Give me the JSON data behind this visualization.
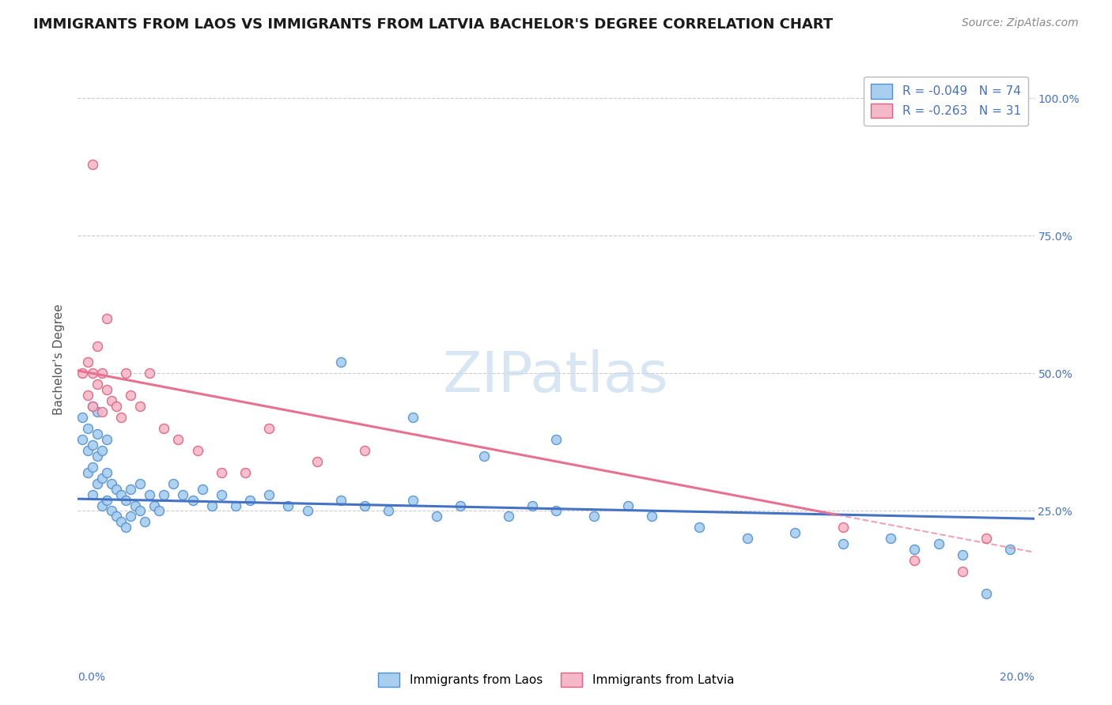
{
  "title": "IMMIGRANTS FROM LAOS VS IMMIGRANTS FROM LATVIA BACHELOR'S DEGREE CORRELATION CHART",
  "source": "Source: ZipAtlas.com",
  "ylabel": "Bachelor's Degree",
  "x_label_bottom_left": "0.0%",
  "x_label_bottom_right": "20.0%",
  "y_ticks": [
    0.0,
    0.25,
    0.5,
    0.75,
    1.0
  ],
  "y_tick_labels_right": [
    "",
    "25.0%",
    "50.0%",
    "75.0%",
    "100.0%"
  ],
  "xlim": [
    0.0,
    0.2
  ],
  "ylim": [
    0.0,
    1.05
  ],
  "blue_color": "#A8CEF0",
  "pink_color": "#F5B8C8",
  "blue_edge_color": "#5090D0",
  "pink_edge_color": "#E06080",
  "blue_line_color": "#4472C4",
  "pink_line_color": "#E87090",
  "watermark_color": "#C8DCF0",
  "watermark": "ZIPatlas",
  "legend_R_blue": "-0.049",
  "legend_N_blue": "74",
  "legend_R_pink": "-0.263",
  "legend_N_pink": "31",
  "legend_label_blue": "Immigrants from Laos",
  "legend_label_pink": "Immigrants from Latvia",
  "blue_scatter_x": [
    0.001,
    0.001,
    0.002,
    0.002,
    0.002,
    0.003,
    0.003,
    0.003,
    0.003,
    0.004,
    0.004,
    0.004,
    0.004,
    0.005,
    0.005,
    0.005,
    0.006,
    0.006,
    0.006,
    0.007,
    0.007,
    0.008,
    0.008,
    0.009,
    0.009,
    0.01,
    0.01,
    0.011,
    0.011,
    0.012,
    0.013,
    0.013,
    0.014,
    0.015,
    0.016,
    0.017,
    0.018,
    0.02,
    0.022,
    0.024,
    0.026,
    0.028,
    0.03,
    0.033,
    0.036,
    0.04,
    0.044,
    0.048,
    0.055,
    0.06,
    0.065,
    0.07,
    0.075,
    0.08,
    0.09,
    0.095,
    0.1,
    0.108,
    0.115,
    0.12,
    0.13,
    0.14,
    0.15,
    0.16,
    0.17,
    0.175,
    0.18,
    0.185,
    0.19,
    0.195,
    0.055,
    0.07,
    0.085,
    0.1
  ],
  "blue_scatter_y": [
    0.38,
    0.42,
    0.32,
    0.36,
    0.4,
    0.28,
    0.33,
    0.37,
    0.44,
    0.3,
    0.35,
    0.39,
    0.43,
    0.26,
    0.31,
    0.36,
    0.27,
    0.32,
    0.38,
    0.25,
    0.3,
    0.24,
    0.29,
    0.23,
    0.28,
    0.22,
    0.27,
    0.24,
    0.29,
    0.26,
    0.25,
    0.3,
    0.23,
    0.28,
    0.26,
    0.25,
    0.28,
    0.3,
    0.28,
    0.27,
    0.29,
    0.26,
    0.28,
    0.26,
    0.27,
    0.28,
    0.26,
    0.25,
    0.27,
    0.26,
    0.25,
    0.27,
    0.24,
    0.26,
    0.24,
    0.26,
    0.25,
    0.24,
    0.26,
    0.24,
    0.22,
    0.2,
    0.21,
    0.19,
    0.2,
    0.18,
    0.19,
    0.17,
    0.1,
    0.18,
    0.52,
    0.42,
    0.35,
    0.38
  ],
  "pink_scatter_x": [
    0.001,
    0.002,
    0.002,
    0.003,
    0.003,
    0.004,
    0.004,
    0.005,
    0.005,
    0.006,
    0.006,
    0.007,
    0.008,
    0.009,
    0.01,
    0.011,
    0.013,
    0.015,
    0.018,
    0.021,
    0.025,
    0.03,
    0.035,
    0.04,
    0.05,
    0.06,
    0.16,
    0.175,
    0.185,
    0.19,
    0.003
  ],
  "pink_scatter_y": [
    0.5,
    0.46,
    0.52,
    0.44,
    0.5,
    0.48,
    0.55,
    0.43,
    0.5,
    0.47,
    0.6,
    0.45,
    0.44,
    0.42,
    0.5,
    0.46,
    0.44,
    0.5,
    0.4,
    0.38,
    0.36,
    0.32,
    0.32,
    0.4,
    0.34,
    0.36,
    0.22,
    0.16,
    0.14,
    0.2,
    0.88
  ],
  "blue_reg_intercept": 0.272,
  "blue_reg_slope": -0.18,
  "pink_reg_intercept": 0.505,
  "pink_reg_slope": -1.65,
  "grid_color": "#CCCCCC",
  "background_color": "#FFFFFF",
  "axis_color": "#4472C4",
  "title_color": "#1a1a1a",
  "title_fontsize": 13,
  "label_fontsize": 11,
  "tick_fontsize": 10,
  "source_fontsize": 10
}
